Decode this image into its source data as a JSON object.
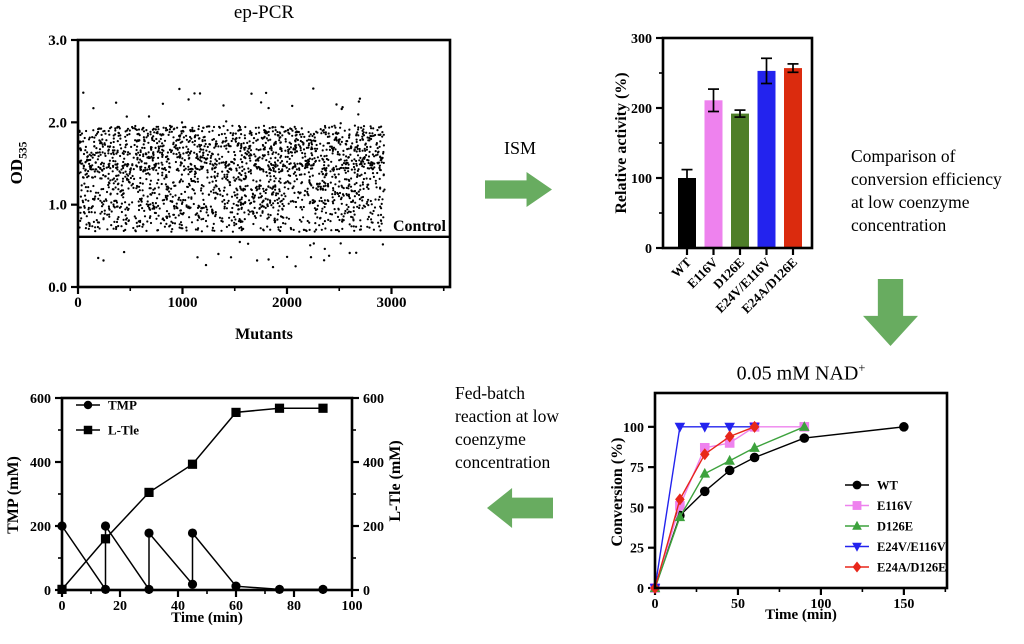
{
  "colors": {
    "arrow_green": "#68AC60",
    "black": "#000000",
    "violet": "#EE82EE",
    "olive_green": "#4E7E28",
    "line_green": "#3DA23D",
    "blue": "#2323EE",
    "bar_red": "#DB2B0E",
    "line_red": "#E8261A"
  },
  "annotations": {
    "ism_label": "ISM",
    "comparison_lines": [
      "Comparison of",
      "conversion efficiency",
      "at low coenzyme",
      "concentration"
    ],
    "fed_batch_lines": [
      "Fed-batch",
      "reaction at low",
      "coenzyme",
      "concentration"
    ]
  },
  "panels": {
    "ep_pcr": {
      "title": "ep-PCR",
      "ylabel_base": "OD",
      "ylabel_sub": "535",
      "xlabel": "Mutants",
      "control_label": "Control"
    },
    "bar": {
      "ylabel": "Relative activity (%)"
    },
    "nad": {
      "title_base": "0.05 mM NAD",
      "title_sup": "+",
      "ylabel": "Conversion (%)",
      "xlabel": "Time (min)"
    },
    "fed": {
      "ylabel_left": "TMP (mM)",
      "ylabel_right": "L-Tle (mM)",
      "xlabel": "Time (min)"
    }
  },
  "chart_data": [
    {
      "id": "ep_pcr_scatter",
      "type": "scatter",
      "title": "ep-PCR",
      "xlabel": "Mutants",
      "ylabel": "OD535",
      "xlim": [
        0,
        3560
      ],
      "ylim": [
        0,
        3
      ],
      "xticks": [
        0,
        1000,
        2000,
        3000
      ],
      "xminor_step": 500,
      "yticks": [
        0,
        1,
        2,
        3
      ],
      "yticklabels": [
        "0.0",
        "1.0",
        "2.0",
        "3.0"
      ],
      "control_line_y": 0.61,
      "control_label": "Control",
      "grid": false,
      "points_generator": {
        "seed": 20,
        "n_points": 2300,
        "x_range": [
          10,
          2935
        ],
        "bands": [
          {
            "fraction": 0.5,
            "y_range": [
              1.42,
              1.96
            ]
          },
          {
            "fraction": 0.34,
            "y_range": [
              0.95,
              1.45
            ]
          },
          {
            "fraction": 0.16,
            "y_range": [
              0.67,
              0.97
            ]
          }
        ],
        "outliers_high": {
          "n": 26,
          "y_range": [
            1.98,
            2.47
          ]
        },
        "outliers_low": {
          "n": 24,
          "y_range": [
            0.24,
            0.56
          ]
        }
      }
    },
    {
      "id": "relative_activity_bar",
      "type": "bar",
      "ylabel": "Relative activity (%)",
      "categories": [
        "WT",
        "E116V",
        "D126E",
        "E24V/E116V",
        "E24A/D126E"
      ],
      "values": [
        100,
        211,
        192,
        253,
        257
      ],
      "errors": [
        12,
        16,
        5,
        18,
        6
      ],
      "bar_colors": [
        "#000000",
        "#EE82EE",
        "#4E7E28",
        "#2323EE",
        "#DB2B0E"
      ],
      "ylim": [
        0,
        300
      ],
      "yticks": [
        0,
        100,
        200,
        300
      ],
      "yminor_step": 50,
      "grid": false
    },
    {
      "id": "fed_batch_dual_axis",
      "type": "line",
      "xlabel": "Time (min)",
      "ylabel_left": "TMP (mM)",
      "ylabel_right": "L-Tle (mM)",
      "xlim": [
        0,
        100
      ],
      "ylim": [
        0,
        600
      ],
      "xticks": [
        0,
        20,
        40,
        60,
        80,
        100
      ],
      "xminor_step": 10,
      "yticks": [
        0,
        200,
        400,
        600
      ],
      "yminor_step": 100,
      "dual_axis": true,
      "legend_position": "top-left",
      "grid": false,
      "series": [
        {
          "name": "TMP",
          "marker": "circle",
          "color": "#000000",
          "x": [
            0,
            15,
            15,
            30,
            30,
            45,
            45,
            60,
            75,
            90
          ],
          "y": [
            200,
            2,
            200,
            2,
            178,
            18,
            178,
            12,
            2,
            2
          ]
        },
        {
          "name": "L-Tle",
          "marker": "square",
          "color": "#000000",
          "x": [
            0,
            15,
            30,
            45,
            60,
            75,
            90
          ],
          "y": [
            2,
            160,
            305,
            393,
            555,
            568,
            568
          ]
        }
      ]
    },
    {
      "id": "nad_conversion",
      "type": "line",
      "title": "0.05 mM NAD+",
      "xlabel": "Time (min)",
      "ylabel": "Conversion (%)",
      "xlim": [
        0,
        176
      ],
      "ylim": [
        0,
        121
      ],
      "xticks": [
        0,
        50,
        100,
        150
      ],
      "xminor_step": 25,
      "yticks": [
        0,
        25,
        50,
        75,
        100
      ],
      "legend_position": "right",
      "grid": false,
      "series": [
        {
          "name": "WT",
          "marker": "circle",
          "color": "#000000",
          "x": [
            0,
            15,
            30,
            45,
            60,
            90,
            150
          ],
          "y": [
            0,
            45,
            60,
            73,
            81,
            93,
            100
          ]
        },
        {
          "name": "E116V",
          "marker": "square",
          "color": "#EE82EE",
          "x": [
            0,
            15,
            30,
            45,
            60,
            90
          ],
          "y": [
            0,
            51,
            87,
            90,
            100,
            100
          ]
        },
        {
          "name": "D126E",
          "marker": "triangle-up",
          "color": "#3DA23D",
          "x": [
            0,
            15,
            30,
            45,
            60,
            90
          ],
          "y": [
            0,
            44,
            71,
            79,
            87,
            100
          ]
        },
        {
          "name": "E24V/E116V",
          "marker": "triangle-down",
          "color": "#2323EE",
          "x": [
            0,
            15,
            30,
            45,
            60
          ],
          "y": [
            0,
            100,
            100,
            100,
            100
          ]
        },
        {
          "name": "E24A/D126E",
          "marker": "diamond",
          "color": "#E8261A",
          "x": [
            0,
            15,
            30,
            45,
            60
          ],
          "y": [
            0,
            55,
            83,
            94,
            100
          ]
        }
      ]
    }
  ]
}
